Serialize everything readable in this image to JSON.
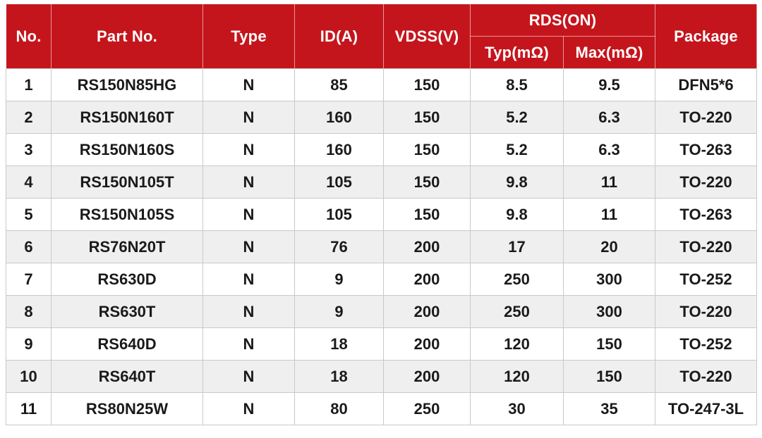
{
  "table": {
    "header": {
      "no": "No.",
      "part_no": "Part No.",
      "type": "Type",
      "id_a": "ID(A)",
      "vdss_v": "VDSS(V)",
      "rds_on": "RDS(ON)",
      "rds_typ": "Typ(mΩ)",
      "rds_max": "Max(mΩ)",
      "package": "Package"
    },
    "rows": [
      [
        "1",
        "RS150N85HG",
        "N",
        "85",
        "150",
        "8.5",
        "9.5",
        "DFN5*6"
      ],
      [
        "2",
        "RS150N160T",
        "N",
        "160",
        "150",
        "5.2",
        "6.3",
        "TO-220"
      ],
      [
        "3",
        "RS150N160S",
        "N",
        "160",
        "150",
        "5.2",
        "6.3",
        "TO-263"
      ],
      [
        "4",
        "RS150N105T",
        "N",
        "105",
        "150",
        "9.8",
        "11",
        "TO-220"
      ],
      [
        "5",
        "RS150N105S",
        "N",
        "105",
        "150",
        "9.8",
        "11",
        "TO-263"
      ],
      [
        "6",
        "RS76N20T",
        "N",
        "76",
        "200",
        "17",
        "20",
        "TO-220"
      ],
      [
        "7",
        "RS630D",
        "N",
        "9",
        "200",
        "250",
        "300",
        "TO-252"
      ],
      [
        "8",
        "RS630T",
        "N",
        "9",
        "200",
        "250",
        "300",
        "TO-220"
      ],
      [
        "9",
        "RS640D",
        "N",
        "18",
        "200",
        "120",
        "150",
        "TO-252"
      ],
      [
        "10",
        "RS640T",
        "N",
        "18",
        "200",
        "120",
        "150",
        "TO-220"
      ],
      [
        "11",
        "RS80N25W",
        "N",
        "80",
        "250",
        "30",
        "35",
        "TO-247-3L"
      ]
    ],
    "colors": {
      "header_bg": "#C5151C",
      "header_text": "#FFFFFF",
      "row_bg": "#FFFFFF",
      "row_alt_bg": "#EFEFEF",
      "border": "#C9C9C9",
      "text": "#1A1A1A"
    }
  }
}
